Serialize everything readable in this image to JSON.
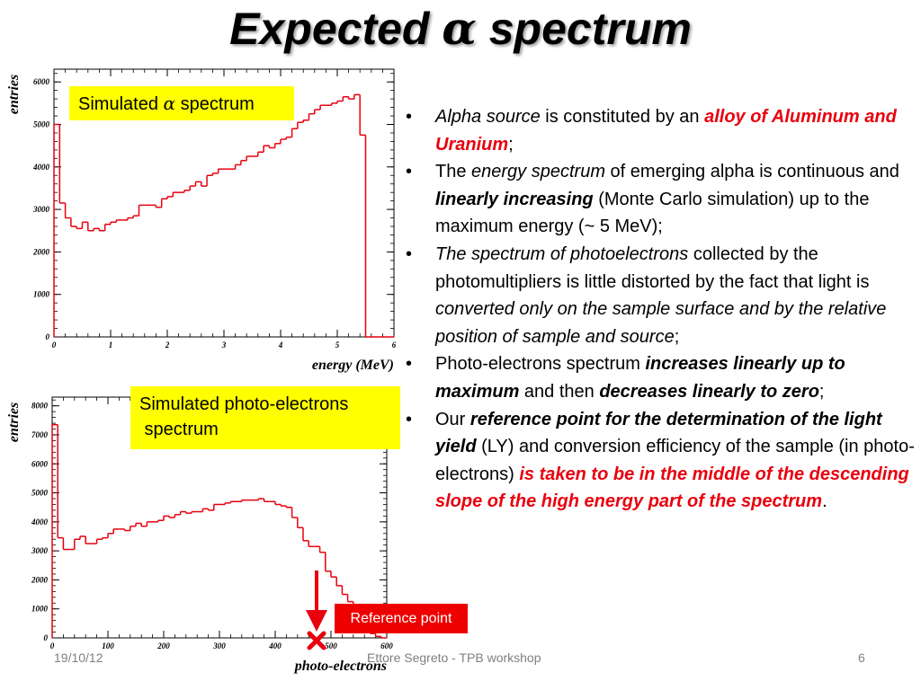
{
  "slide": {
    "title_prefix": "Expected ",
    "title_alpha": "α",
    "title_suffix": " spectrum",
    "footer": {
      "date": "19/10/12",
      "author": "Ettore Segreto - TPB workshop",
      "page": "6"
    },
    "labels": {
      "alpha_prefix": "Simulated ",
      "alpha_glyph": "α",
      "alpha_suffix": " spectrum",
      "pe_line1": "Simulated photo-electrons",
      "pe_line2": " spectrum",
      "reference_point": "Reference point"
    },
    "bullets": [
      [
        {
          "t": "Alpha source",
          "s": "it"
        },
        {
          "t": " is constituted by an ",
          "s": ""
        },
        {
          "t": "alloy of Aluminum and  Uranium",
          "s": "bd it red"
        },
        {
          "t": ";",
          "s": ""
        }
      ],
      [
        {
          "t": "The ",
          "s": ""
        },
        {
          "t": "energy spectrum",
          "s": "it"
        },
        {
          "t": " of emerging alpha is continuous and ",
          "s": ""
        },
        {
          "t": "linearly increasing",
          "s": "bd it"
        },
        {
          "t": " (Monte Carlo simulation) up to the maximum energy      (~ 5 MeV);",
          "s": ""
        }
      ],
      [
        {
          "t": "The spectrum of photoelectrons",
          "s": "it"
        },
        {
          "t": " collected by the photomultipliers is little distorted by the fact that light is ",
          "s": ""
        },
        {
          "t": "converted only on the sample surface and by the relative position of sample and source",
          "s": "it"
        },
        {
          "t": ";",
          "s": ""
        }
      ],
      [
        {
          "t": "Photo-electrons spectrum ",
          "s": ""
        },
        {
          "t": "increases linearly up to maximum",
          "s": "bd it"
        },
        {
          "t": " and then ",
          "s": ""
        },
        {
          "t": "decreases linearly to zero",
          "s": "bd it"
        },
        {
          "t": ";",
          "s": ""
        }
      ],
      [
        {
          "t": "Our ",
          "s": ""
        },
        {
          "t": "reference point for the determination of the light yield",
          "s": "bd it"
        },
        {
          "t": " (LY) and conversion efficiency of the sample (in photo-electrons) ",
          "s": ""
        },
        {
          "t": "is taken to be in the middle of the descending slope of the high energy part of the spectrum",
          "s": "bd it red"
        },
        {
          "t": ".",
          "s": ""
        }
      ]
    ]
  },
  "colors": {
    "histogram": "#e8000e",
    "label_bg": "#ffff00",
    "marker": "#e8000e",
    "reference_box": "#ee0000"
  },
  "chart_data": [
    {
      "type": "histogram",
      "title": "",
      "xlabel": "energy (MeV)",
      "ylabel": "entries",
      "xlim": [
        0,
        6
      ],
      "ylim": [
        0,
        6300
      ],
      "xticks": [
        "0",
        "1",
        "2",
        "3",
        "4",
        "5",
        "6"
      ],
      "yticks": [
        "0",
        "1000",
        "2000",
        "3000",
        "4000",
        "5000",
        "6000"
      ],
      "bin_width": 0.1,
      "values": [
        5000,
        3150,
        2800,
        2600,
        2550,
        2700,
        2500,
        2550,
        2500,
        2650,
        2700,
        2750,
        2750,
        2800,
        2850,
        3100,
        3100,
        3100,
        3050,
        3250,
        3300,
        3400,
        3400,
        3450,
        3550,
        3650,
        3550,
        3800,
        3850,
        3950,
        3950,
        3950,
        4050,
        4150,
        4250,
        4250,
        4350,
        4500,
        4450,
        4550,
        4650,
        4700,
        4900,
        5050,
        5100,
        5250,
        5350,
        5450,
        5450,
        5500,
        5550,
        5650,
        5600,
        5700,
        4750,
        0,
        0,
        0,
        0,
        0
      ]
    },
    {
      "type": "histogram",
      "title": "",
      "xlabel": "photo-electrons",
      "ylabel": "entries",
      "xlim": [
        0,
        600
      ],
      "ylim": [
        0,
        8300
      ],
      "xticks": [
        "0",
        "100",
        "200",
        "300",
        "400",
        "500",
        "600"
      ],
      "yticks": [
        "0",
        "1000",
        "2000",
        "3000",
        "4000",
        "5000",
        "6000",
        "7000",
        "8000"
      ],
      "bin_width": 10,
      "values": [
        7350,
        3450,
        3050,
        3050,
        3400,
        3500,
        3250,
        3250,
        3400,
        3450,
        3600,
        3750,
        3750,
        3700,
        3850,
        3950,
        3850,
        4000,
        4000,
        4050,
        4200,
        4150,
        4250,
        4350,
        4300,
        4350,
        4350,
        4450,
        4400,
        4600,
        4600,
        4650,
        4700,
        4700,
        4750,
        4750,
        4750,
        4800,
        4700,
        4700,
        4600,
        4550,
        4500,
        4150,
        3800,
        3350,
        3150,
        3150,
        2950,
        2300,
        2100,
        1800,
        1500,
        1250,
        900,
        550,
        300,
        150,
        50,
        0
      ]
    }
  ]
}
